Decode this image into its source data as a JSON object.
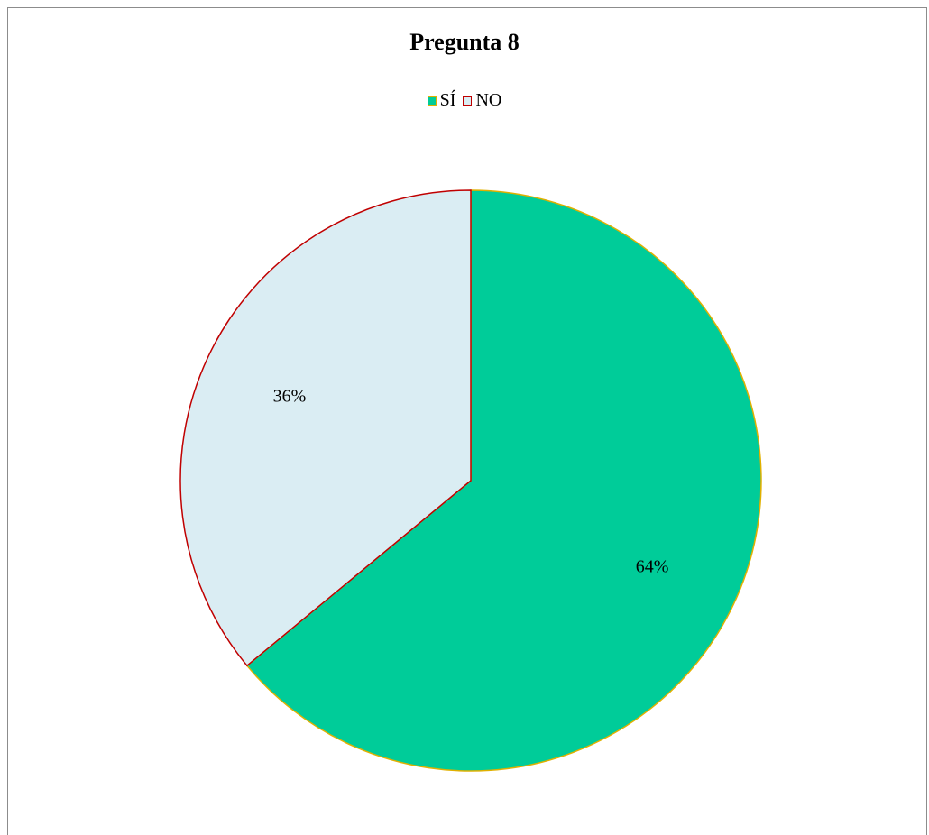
{
  "chart_data": {
    "type": "pie",
    "title": "Pregunta 8",
    "legend_position": "top",
    "slices": [
      {
        "name": "SÍ",
        "value": 64,
        "label": "64%",
        "fill": "#00cc99",
        "stroke": "#e0b000"
      },
      {
        "name": "NO",
        "value": 36,
        "label": "36%",
        "fill": "#daedf3",
        "stroke": "#c00000"
      }
    ]
  }
}
